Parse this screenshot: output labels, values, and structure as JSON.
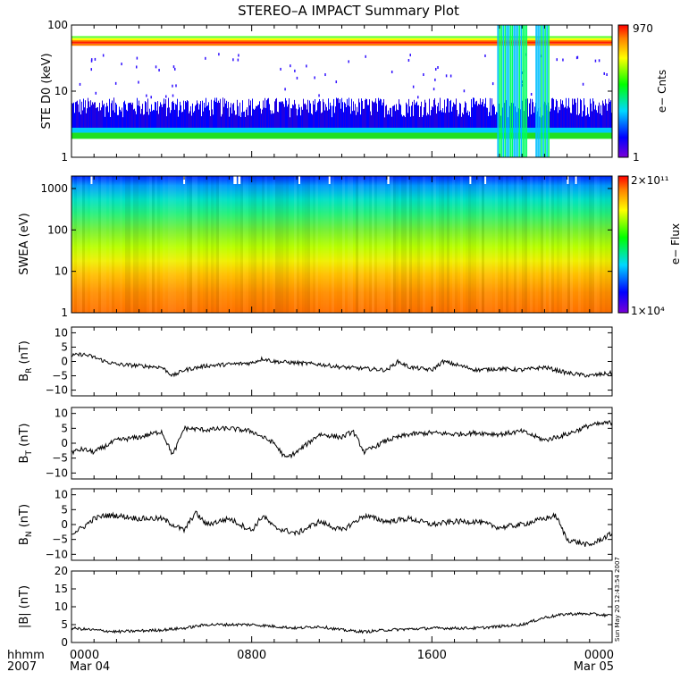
{
  "title": "STEREO–A IMPACT Summary Plot",
  "time_axis": {
    "ticks": [
      {
        "label": "0000",
        "sublabel": "Mar 04"
      },
      {
        "label": "0800",
        "sublabel": ""
      },
      {
        "label": "1600",
        "sublabel": ""
      },
      {
        "label": "0000",
        "sublabel": "Mar 05"
      }
    ],
    "corner_label_top": "hhmm",
    "corner_label_bottom": "2007",
    "range_hours": [
      0,
      24
    ]
  },
  "timestamp_note": "Sun May 20 12:43:54 2007",
  "panels": {
    "ste": {
      "ylabel": "STE D0 (keV)",
      "yscale": "log",
      "ylim": [
        1,
        100
      ],
      "yticks": [
        "1",
        "10",
        "100"
      ],
      "colorbar": {
        "label": "e− Cnts",
        "max_label": "970",
        "min_label": "1"
      }
    },
    "swea": {
      "ylabel": "SWEA (eV)",
      "yscale": "log",
      "ylim": [
        1,
        2000
      ],
      "yticks": [
        "1",
        "10",
        "100",
        "1000"
      ],
      "colorbar": {
        "label": "e− Flux",
        "max_label": "2×10¹¹",
        "min_label": "1×10⁴"
      }
    },
    "br": {
      "ylabel": "B",
      "sub": "R",
      "unit": " (nT)",
      "ylim": [
        -12,
        12
      ],
      "yticks": [
        "10",
        "5",
        "0",
        "−5",
        "−10"
      ]
    },
    "bt": {
      "ylabel": "B",
      "sub": "T",
      "unit": " (nT)",
      "ylim": [
        -12,
        12
      ],
      "yticks": [
        "10",
        "5",
        "0",
        "−5",
        "−10"
      ]
    },
    "bn": {
      "ylabel": "B",
      "sub": "N",
      "unit": " (nT)",
      "ylim": [
        -12,
        12
      ],
      "yticks": [
        "10",
        "5",
        "0",
        "−5",
        "−10"
      ]
    },
    "bmag": {
      "ylabel": "|B| (nT)",
      "ylim": [
        0,
        20
      ],
      "yticks": [
        "20",
        "15",
        "10",
        "5",
        "0"
      ]
    }
  },
  "chart_data": [
    {
      "type": "heatmap",
      "title": "STEREO–A IMPACT Summary Plot",
      "ylabel": "STE D0 (keV)",
      "yscale": "log",
      "ylim": [
        1,
        100
      ],
      "x_hours": [
        0,
        24
      ],
      "colorbar": {
        "label": "e− Cnts",
        "min": 1,
        "max": 970
      },
      "bands": [
        {
          "energy_keV": 2.2,
          "counts_level": "medium"
        },
        {
          "energy_keV": 3.5,
          "counts_level": "low"
        },
        {
          "energy_keV": 60,
          "counts_level": "high"
        }
      ],
      "bursts_hours": [
        [
          18.9,
          20.2
        ],
        [
          20.6,
          21.2
        ]
      ]
    },
    {
      "type": "heatmap",
      "ylabel": "SWEA (eV)",
      "yscale": "log",
      "ylim": [
        1,
        2000
      ],
      "x_hours": [
        0,
        24
      ],
      "colorbar": {
        "label": "e− Flux",
        "min": 10000,
        "max": 200000000000
      },
      "energy_profile": [
        {
          "energy_eV": 1.5,
          "level": 0.85
        },
        {
          "energy_eV": 10,
          "level": 0.68
        },
        {
          "energy_eV": 50,
          "level": 0.56
        },
        {
          "energy_eV": 200,
          "level": 0.45
        },
        {
          "energy_eV": 600,
          "level": 0.34
        },
        {
          "energy_eV": 1600,
          "level": 0.18
        }
      ]
    },
    {
      "type": "line",
      "ylabel": "B_R (nT)",
      "ylim": [
        -12,
        12
      ],
      "x": [
        0,
        0.5,
        1,
        1.5,
        2,
        3,
        4,
        4.5,
        5,
        6,
        7,
        8,
        8.5,
        9,
        10,
        11,
        12,
        13,
        14,
        14.5,
        15,
        16,
        16.5,
        17,
        18,
        19,
        20,
        21,
        22,
        23,
        24
      ],
      "y": [
        2,
        2.5,
        1.5,
        0,
        -1,
        -1.5,
        -2,
        -5,
        -3,
        -1.5,
        -1,
        -0.5,
        1,
        0,
        -0.5,
        -1,
        -2,
        -2.5,
        -3,
        0,
        -2,
        -3,
        0,
        -1,
        -3,
        -2.5,
        -3,
        -2,
        -4,
        -5,
        -4
      ]
    },
    {
      "type": "line",
      "ylabel": "B_T (nT)",
      "ylim": [
        -12,
        12
      ],
      "x": [
        0,
        0.5,
        1,
        1.5,
        2,
        3,
        3.5,
        4,
        4.5,
        5,
        6,
        7,
        8,
        9,
        9.5,
        10,
        11,
        12,
        12.5,
        13,
        14,
        15,
        16,
        17,
        18,
        19,
        20,
        21,
        22,
        23,
        24
      ],
      "y": [
        -3,
        -2,
        -3,
        -1,
        1,
        2,
        3,
        4,
        -4,
        5,
        4.5,
        5,
        4,
        0,
        -5,
        -3,
        3,
        2,
        4,
        -3,
        1,
        3,
        3.5,
        3,
        3.5,
        3,
        4,
        1,
        3,
        6,
        7
      ]
    },
    {
      "type": "line",
      "ylabel": "B_N (nT)",
      "ylim": [
        -12,
        12
      ],
      "x": [
        0,
        0.5,
        1,
        1.5,
        2,
        3,
        4,
        5,
        5.5,
        6,
        7,
        8,
        8.5,
        9,
        10,
        11,
        12,
        13,
        14,
        15,
        16,
        17,
        18,
        19,
        20,
        21,
        21.5,
        22,
        23,
        24
      ],
      "y": [
        -3,
        -1,
        2,
        3,
        3,
        2,
        2,
        -2,
        4,
        0,
        2,
        -2,
        3,
        -1,
        -3,
        1,
        -2,
        3,
        1,
        2,
        0,
        1,
        1,
        -1,
        0,
        2,
        3,
        -5,
        -7,
        -3
      ]
    },
    {
      "type": "line",
      "ylabel": "|B| (nT)",
      "ylim": [
        0,
        20
      ],
      "x": [
        0,
        2,
        4,
        5,
        6,
        8,
        10,
        11,
        12,
        13,
        14,
        16,
        18,
        20,
        21,
        22,
        23,
        24
      ],
      "y": [
        4,
        3,
        3.5,
        4,
        5,
        5,
        4,
        4.5,
        3.5,
        3,
        3.5,
        4,
        4,
        5,
        7,
        8,
        8,
        7.5
      ]
    }
  ]
}
